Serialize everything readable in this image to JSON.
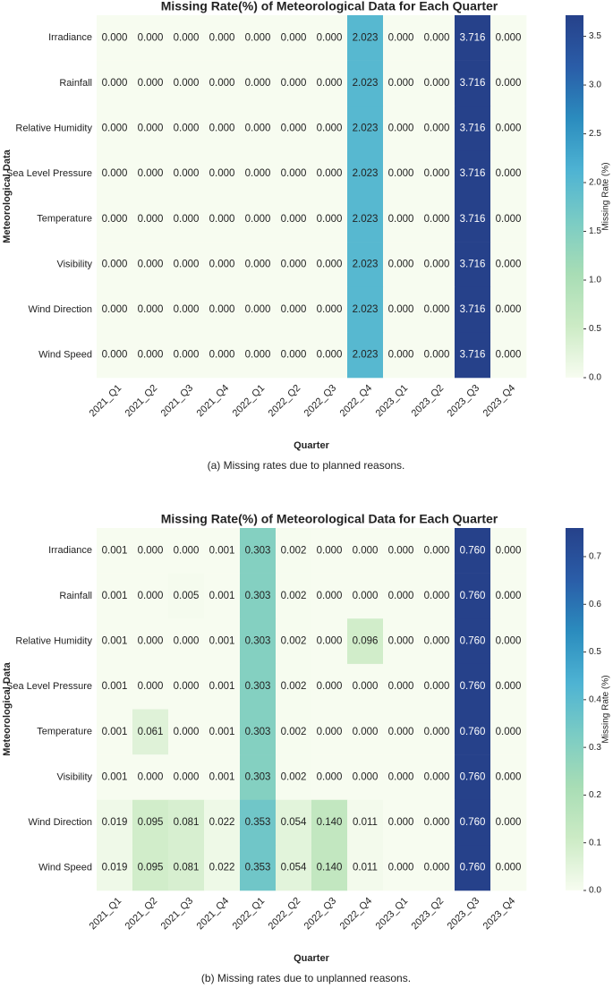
{
  "chart_data": [
    {
      "type": "heatmap",
      "title": "Missing Rate(%) of Meteorological Data for Each Quarter",
      "xlabel": "Quarter",
      "ylabel": "Meteorological Data",
      "colorbar_label": "Missing Rate (%)",
      "caption": "(a) Missing rates due to planned reasons.",
      "categories": [
        "2021_Q1",
        "2021_Q2",
        "2021_Q3",
        "2021_Q4",
        "2022_Q1",
        "2022_Q2",
        "2022_Q3",
        "2022_Q4",
        "2023_Q1",
        "2023_Q2",
        "2023_Q3",
        "2023_Q4"
      ],
      "rows": [
        "Irradiance",
        "Rainfall",
        "Relative Humidity",
        "Sea Level Pressure",
        "Temperature",
        "Visibility",
        "Wind Direction",
        "Wind Speed"
      ],
      "values": [
        [
          0,
          0,
          0,
          0,
          0,
          0,
          0,
          2.023,
          0,
          0,
          3.716,
          0
        ],
        [
          0,
          0,
          0,
          0,
          0,
          0,
          0,
          2.023,
          0,
          0,
          3.716,
          0
        ],
        [
          0,
          0,
          0,
          0,
          0,
          0,
          0,
          2.023,
          0,
          0,
          3.716,
          0
        ],
        [
          0,
          0,
          0,
          0,
          0,
          0,
          0,
          2.023,
          0,
          0,
          3.716,
          0
        ],
        [
          0,
          0,
          0,
          0,
          0,
          0,
          0,
          2.023,
          0,
          0,
          3.716,
          0
        ],
        [
          0,
          0,
          0,
          0,
          0,
          0,
          0,
          2.023,
          0,
          0,
          3.716,
          0
        ],
        [
          0,
          0,
          0,
          0,
          0,
          0,
          0,
          2.023,
          0,
          0,
          3.716,
          0
        ],
        [
          0,
          0,
          0,
          0,
          0,
          0,
          0,
          2.023,
          0,
          0,
          3.716,
          0
        ]
      ],
      "value_labels": [
        [
          "0.000",
          "0.000",
          "0.000",
          "0.000",
          "0.000",
          "0.000",
          "0.000",
          "2.023",
          "0.000",
          "0.000",
          "3.716",
          "0.000"
        ],
        [
          "0.000",
          "0.000",
          "0.000",
          "0.000",
          "0.000",
          "0.000",
          "0.000",
          "2.023",
          "0.000",
          "0.000",
          "3.716",
          "0.000"
        ],
        [
          "0.000",
          "0.000",
          "0.000",
          "0.000",
          "0.000",
          "0.000",
          "0.000",
          "2.023",
          "0.000",
          "0.000",
          "3.716",
          "0.000"
        ],
        [
          "0.000",
          "0.000",
          "0.000",
          "0.000",
          "0.000",
          "0.000",
          "0.000",
          "2.023",
          "0.000",
          "0.000",
          "3.716",
          "0.000"
        ],
        [
          "0.000",
          "0.000",
          "0.000",
          "0.000",
          "0.000",
          "0.000",
          "0.000",
          "2.023",
          "0.000",
          "0.000",
          "3.716",
          "0.000"
        ],
        [
          "0.000",
          "0.000",
          "0.000",
          "0.000",
          "0.000",
          "0.000",
          "0.000",
          "2.023",
          "0.000",
          "0.000",
          "3.716",
          "0.000"
        ],
        [
          "0.000",
          "0.000",
          "0.000",
          "0.000",
          "0.000",
          "0.000",
          "0.000",
          "2.023",
          "0.000",
          "0.000",
          "3.716",
          "0.000"
        ],
        [
          "0.000",
          "0.000",
          "0.000",
          "0.000",
          "0.000",
          "0.000",
          "0.000",
          "2.023",
          "0.000",
          "0.000",
          "3.716",
          "0.000"
        ]
      ],
      "zlim": [
        0,
        3.716
      ],
      "zticks": [
        {
          "value": 0,
          "label": "0.0"
        },
        0.5,
        {
          "value": 1,
          "label": "1.0"
        },
        1.5,
        {
          "value": 2,
          "label": "2.0"
        },
        2.5,
        {
          "value": 3,
          "label": "3.0"
        },
        3.5
      ],
      "colormap": [
        "#f7fcf0",
        "#ccebc5",
        "#a8ddb5",
        "#7bccc4",
        "#4eb3d3",
        "#2b8cbe",
        "#2a5da8",
        "#26418a"
      ]
    },
    {
      "type": "heatmap",
      "title": "Missing Rate(%) of Meteorological Data for Each Quarter",
      "xlabel": "Quarter",
      "ylabel": "Meteorological Data",
      "colorbar_label": "Missing Rate (%)",
      "caption": "(b) Missing rates due to unplanned reasons.",
      "categories": [
        "2021_Q1",
        "2021_Q2",
        "2021_Q3",
        "2021_Q4",
        "2022_Q1",
        "2022_Q2",
        "2022_Q3",
        "2022_Q4",
        "2023_Q1",
        "2023_Q2",
        "2023_Q3",
        "2023_Q4"
      ],
      "rows": [
        "Irradiance",
        "Rainfall",
        "Relative Humidity",
        "Sea Level Pressure",
        "Temperature",
        "Visibility",
        "Wind Direction",
        "Wind Speed"
      ],
      "values": [
        [
          0.001,
          0,
          0,
          0.001,
          0.303,
          0.002,
          0,
          0,
          0,
          0,
          0.76,
          0
        ],
        [
          0.001,
          0,
          0.005,
          0.001,
          0.303,
          0.002,
          0,
          0,
          0,
          0,
          0.76,
          0
        ],
        [
          0.001,
          0,
          0,
          0.001,
          0.303,
          0.002,
          0,
          0.096,
          0,
          0,
          0.76,
          0
        ],
        [
          0.001,
          0,
          0,
          0.001,
          0.303,
          0.002,
          0,
          0,
          0,
          0,
          0.76,
          0
        ],
        [
          0.001,
          0.061,
          0,
          0.001,
          0.303,
          0.002,
          0,
          0,
          0,
          0,
          0.76,
          0
        ],
        [
          0.001,
          0,
          0,
          0.001,
          0.303,
          0.002,
          0,
          0,
          0,
          0,
          0.76,
          0
        ],
        [
          0.019,
          0.095,
          0.081,
          0.022,
          0.353,
          0.054,
          0.14,
          0.011,
          0,
          0,
          0.76,
          0
        ],
        [
          0.019,
          0.095,
          0.081,
          0.022,
          0.353,
          0.054,
          0.14,
          0.011,
          0,
          0,
          0.76,
          0
        ]
      ],
      "value_labels": [
        [
          "0.001",
          "0.000",
          "0.000",
          "0.001",
          "0.303",
          "0.002",
          "0.000",
          "0.000",
          "0.000",
          "0.000",
          "0.760",
          "0.000"
        ],
        [
          "0.001",
          "0.000",
          "0.005",
          "0.001",
          "0.303",
          "0.002",
          "0.000",
          "0.000",
          "0.000",
          "0.000",
          "0.760",
          "0.000"
        ],
        [
          "0.001",
          "0.000",
          "0.000",
          "0.001",
          "0.303",
          "0.002",
          "0.000",
          "0.096",
          "0.000",
          "0.000",
          "0.760",
          "0.000"
        ],
        [
          "0.001",
          "0.000",
          "0.000",
          "0.001",
          "0.303",
          "0.002",
          "0.000",
          "0.000",
          "0.000",
          "0.000",
          "0.760",
          "0.000"
        ],
        [
          "0.001",
          "0.061",
          "0.000",
          "0.001",
          "0.303",
          "0.002",
          "0.000",
          "0.000",
          "0.000",
          "0.000",
          "0.760",
          "0.000"
        ],
        [
          "0.001",
          "0.000",
          "0.000",
          "0.001",
          "0.303",
          "0.002",
          "0.000",
          "0.000",
          "0.000",
          "0.000",
          "0.760",
          "0.000"
        ],
        [
          "0.019",
          "0.095",
          "0.081",
          "0.022",
          "0.353",
          "0.054",
          "0.140",
          "0.011",
          "0.000",
          "0.000",
          "0.760",
          "0.000"
        ],
        [
          "0.019",
          "0.095",
          "0.081",
          "0.022",
          "0.353",
          "0.054",
          "0.140",
          "0.011",
          "0.000",
          "0.000",
          "0.760",
          "0.000"
        ]
      ],
      "zlim": [
        0,
        0.76
      ],
      "zticks": [
        {
          "value": 0,
          "label": "0.0"
        },
        0.1,
        0.2,
        0.3,
        0.4,
        0.5,
        0.6,
        0.7
      ],
      "colormap": [
        "#f7fcf0",
        "#ccebc5",
        "#a8ddb5",
        "#7bccc4",
        "#4eb3d3",
        "#2b8cbe",
        "#2a5da8",
        "#26418a"
      ]
    }
  ]
}
